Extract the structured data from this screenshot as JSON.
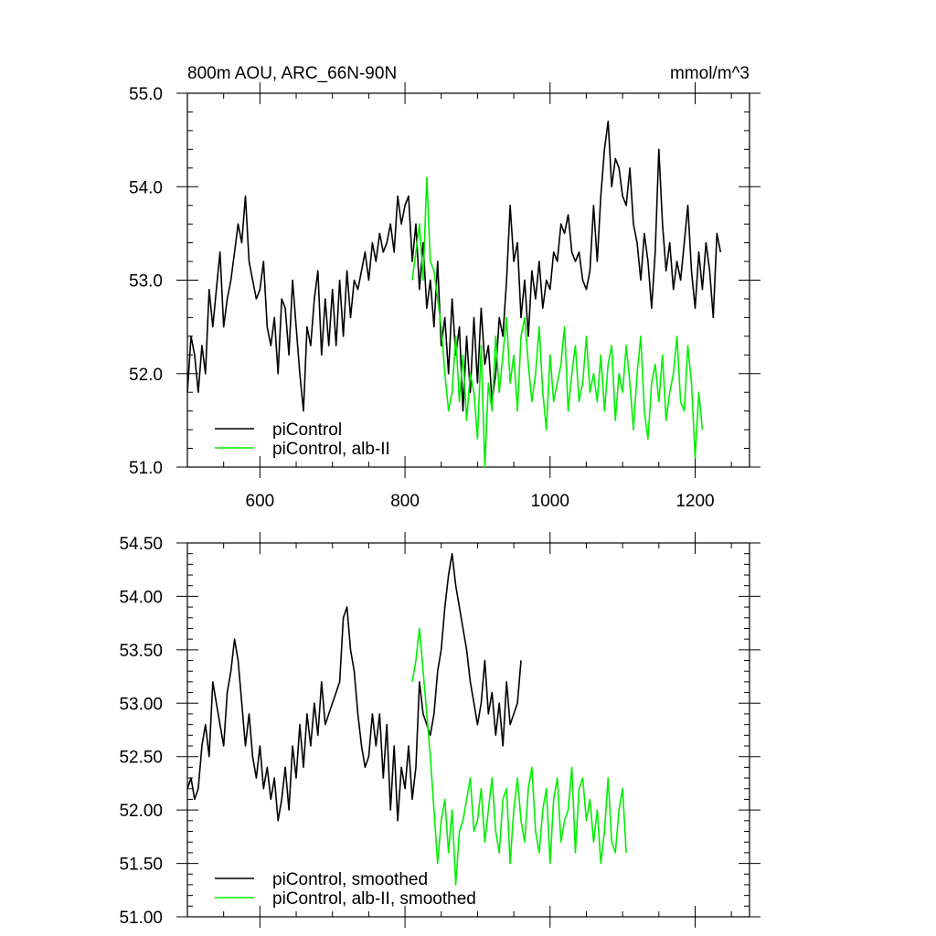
{
  "figure": {
    "title_left": "800m AOU, ARC_66N-90N",
    "title_right": "mmol/m^3"
  },
  "chart_data": [
    {
      "type": "line",
      "panel": "top",
      "xlim": [
        500,
        1275
      ],
      "ylim": [
        51.0,
        55.0
      ],
      "x_ticks": [
        600,
        800,
        1000,
        1200
      ],
      "x_tick_labels": [
        "600",
        "800",
        "1000",
        "1200"
      ],
      "y_ticks": [
        51.0,
        52.0,
        53.0,
        54.0,
        55.0
      ],
      "y_tick_labels": [
        "51.0",
        "52.0",
        "53.0",
        "54.0",
        "55.0"
      ],
      "legend_placement": "bottom-left",
      "grid": false,
      "series": [
        {
          "name": "piControl",
          "color": "#000000",
          "x_start": 500,
          "x_step": 5,
          "y": [
            51.8,
            52.4,
            52.2,
            51.8,
            52.3,
            52.0,
            52.9,
            52.5,
            52.9,
            53.3,
            52.5,
            52.8,
            53.0,
            53.3,
            53.6,
            53.4,
            53.9,
            53.2,
            53.0,
            52.8,
            52.9,
            53.2,
            52.5,
            52.3,
            52.6,
            52.0,
            52.8,
            52.7,
            52.2,
            53.0,
            52.5,
            52.0,
            51.6,
            52.5,
            52.3,
            52.8,
            53.1,
            52.2,
            52.8,
            52.3,
            52.9,
            52.3,
            53.0,
            52.4,
            53.1,
            52.6,
            53.0,
            52.9,
            53.1,
            53.3,
            53.0,
            53.4,
            53.2,
            53.5,
            53.3,
            53.4,
            53.6,
            53.3,
            53.9,
            53.6,
            53.8,
            53.9,
            53.2,
            53.6,
            52.9,
            53.4,
            52.7,
            53.0,
            52.5,
            53.2,
            52.3,
            52.6,
            52.0,
            52.8,
            52.2,
            52.5,
            51.6,
            52.4,
            51.8,
            52.6,
            51.9,
            52.7,
            52.1,
            52.3,
            51.7,
            52.0,
            52.6,
            52.4,
            53.0,
            53.8,
            53.2,
            53.4,
            52.6,
            53.0,
            52.4,
            53.1,
            52.8,
            53.2,
            52.7,
            53.0,
            52.9,
            53.3,
            53.2,
            53.6,
            53.5,
            53.7,
            53.3,
            53.2,
            53.3,
            53.0,
            52.9,
            53.1,
            53.8,
            53.2,
            53.9,
            54.4,
            54.7,
            54.0,
            54.3,
            54.2,
            53.9,
            53.8,
            54.2,
            53.6,
            53.4,
            53.0,
            53.5,
            53.2,
            52.7,
            53.3,
            54.4,
            53.6,
            53.1,
            53.4,
            52.9,
            53.2,
            53.0,
            53.4,
            53.8,
            53.1,
            52.7,
            53.3,
            52.9,
            53.4,
            53.1,
            52.6,
            53.5,
            53.3
          ]
        },
        {
          "name": "piControl, alb-II",
          "color": "#00ee00",
          "x_start": 810,
          "x_step": 5,
          "y": [
            53.0,
            53.3,
            53.6,
            53.0,
            54.1,
            53.2,
            53.1,
            52.8,
            52.5,
            52.0,
            51.6,
            51.8,
            52.4,
            51.7,
            52.2,
            51.5,
            52.0,
            51.8,
            51.3,
            52.3,
            51.0,
            51.9,
            51.6,
            52.4,
            51.8,
            52.2,
            52.6,
            51.9,
            52.2,
            51.6,
            52.4,
            52.6,
            52.1,
            51.7,
            52.0,
            52.5,
            51.8,
            51.4,
            52.2,
            51.7,
            51.9,
            52.1,
            52.5,
            51.6,
            52.0,
            52.3,
            51.7,
            51.9,
            52.4,
            51.8,
            52.0,
            51.7,
            52.2,
            51.6,
            52.1,
            52.3,
            51.5,
            52.0,
            51.8,
            52.3,
            51.9,
            51.4,
            52.0,
            52.4,
            51.6,
            51.3,
            51.9,
            52.1,
            51.7,
            52.2,
            51.5,
            51.8,
            52.0,
            52.4,
            51.7,
            51.6,
            52.3,
            51.9,
            51.1,
            51.8,
            51.4
          ]
        }
      ]
    },
    {
      "type": "line",
      "panel": "bottom",
      "xlim": [
        500,
        1275
      ],
      "ylim": [
        51.0,
        54.5
      ],
      "x_ticks": [
        600,
        800,
        1000,
        1200
      ],
      "x_tick_labels": [],
      "y_ticks": [
        51.0,
        51.5,
        52.0,
        52.5,
        53.0,
        53.5,
        54.0,
        54.5
      ],
      "y_tick_labels": [
        "51.00",
        "51.50",
        "52.00",
        "52.50",
        "53.00",
        "53.50",
        "54.00",
        "54.50"
      ],
      "legend_placement": "bottom-left",
      "grid": false,
      "series": [
        {
          "name": "piControl, smoothed",
          "color": "#000000",
          "x_start": 500,
          "x_step": 5,
          "y": [
            52.2,
            52.3,
            52.1,
            52.2,
            52.6,
            52.8,
            52.5,
            53.2,
            53.0,
            52.8,
            52.6,
            53.1,
            53.3,
            53.6,
            53.4,
            53.0,
            52.6,
            52.9,
            52.5,
            52.3,
            52.6,
            52.2,
            52.4,
            52.1,
            52.3,
            51.9,
            52.1,
            52.4,
            52.0,
            52.6,
            52.3,
            52.8,
            52.4,
            52.9,
            52.6,
            53.0,
            52.7,
            53.2,
            52.8,
            52.9,
            53.0,
            53.1,
            53.2,
            53.8,
            53.9,
            53.5,
            53.3,
            52.9,
            52.6,
            52.4,
            52.5,
            52.9,
            52.6,
            52.9,
            52.3,
            52.8,
            52.0,
            52.6,
            51.9,
            52.4,
            52.2,
            52.6,
            52.1,
            52.4,
            53.2,
            52.9,
            52.8,
            52.7,
            52.9,
            53.3,
            53.5,
            53.9,
            54.2,
            54.4,
            54.1,
            53.9,
            53.7,
            53.5,
            53.2,
            53.0,
            52.8,
            53.0,
            53.4,
            52.9,
            53.1,
            52.7,
            53.0,
            52.6,
            53.2,
            52.8,
            52.9,
            53.0,
            53.4
          ]
        },
        {
          "name": "piControl, alb-II, smoothed",
          "color": "#00ee00",
          "x_start": 810,
          "x_step": 5,
          "y": [
            53.2,
            53.4,
            53.7,
            53.3,
            52.9,
            52.5,
            52.0,
            51.5,
            51.9,
            52.1,
            51.6,
            52.0,
            51.3,
            51.8,
            51.9,
            52.1,
            52.3,
            51.8,
            51.9,
            52.2,
            51.7,
            52.0,
            52.3,
            51.8,
            51.6,
            52.1,
            52.2,
            51.5,
            52.0,
            52.3,
            51.9,
            51.7,
            52.2,
            52.4,
            51.8,
            51.6,
            52.0,
            52.2,
            51.5,
            52.1,
            52.3,
            51.7,
            51.9,
            52.0,
            52.4,
            51.6,
            52.2,
            52.3,
            51.9,
            52.1,
            51.7,
            52.0,
            51.5,
            51.8,
            52.3,
            51.7,
            51.6,
            52.0,
            52.2,
            51.6
          ]
        }
      ]
    }
  ]
}
